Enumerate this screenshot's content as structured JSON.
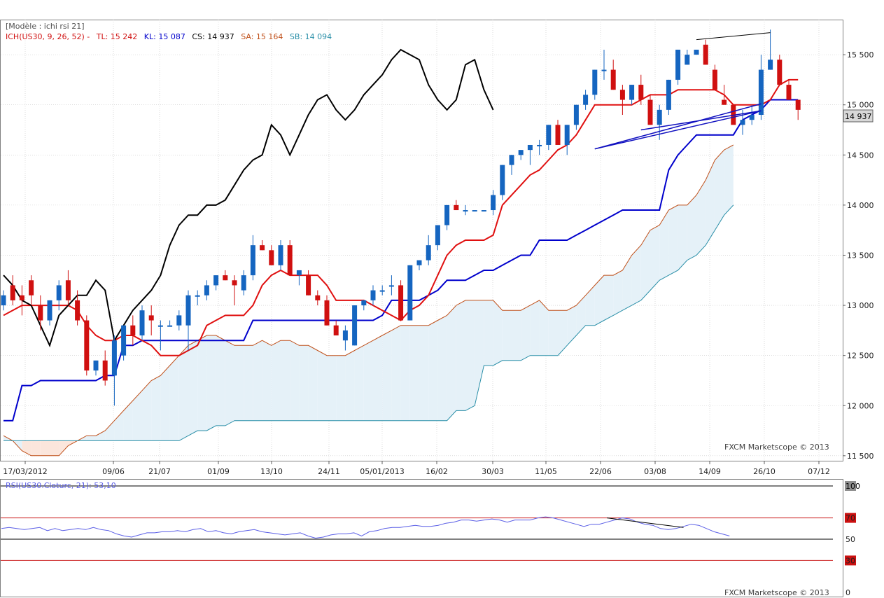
{
  "header": {
    "template_label": "[Modèle : ichi rsi 21]",
    "indicator_prefix": "ICH(US30, 9, 26, 52) -",
    "tl_label": "TL: 15 242",
    "kl_label": "KL: 15 087",
    "cs_label": "CS: 14 937",
    "sa_label": "SA: 15 164",
    "sb_label": "SB: 14 094"
  },
  "price_tag": "14 937",
  "watermark": "FXCM Marketscope © 2013",
  "rsi_label": "RSI(US30.Cloturc, 21): 53,10",
  "colors": {
    "bull": "#1565c0",
    "bear": "#d01010",
    "tenkan": "#e01010",
    "kijun": "#0000cc",
    "chikou": "#000000",
    "span_a": "#c0501a",
    "span_b": "#2a8fa8",
    "cloud_bull": "#e5f1f8",
    "cloud_bear": "#fbe6dc",
    "rsi_line": "#5a5ee6",
    "grid": "#c8c8c8",
    "level_red": "#cc2020"
  },
  "chart_data": [
    {
      "type": "candlestick",
      "title": "US30",
      "instrument": "US30",
      "ylim": [
        11450,
        15850
      ],
      "y_ticks": [
        11500,
        12000,
        12500,
        13000,
        13500,
        14000,
        14500,
        15000,
        15500
      ],
      "y_tick_labels": [
        "11 500",
        "12 000",
        "12 500",
        "13 000",
        "13 500",
        "14 000",
        "14 500",
        "15 000",
        "15 500"
      ],
      "x_tick_labels": [
        "17/03/2012",
        "09/06",
        "21/07",
        "01/09",
        "13/10",
        "24/11",
        "05/01/2013",
        "16/02",
        "30/03",
        "11/05",
        "22/06",
        "03/08",
        "14/09",
        "26/10",
        "07/12"
      ],
      "candles_ohlc": [
        [
          13000,
          13150,
          12950,
          13100
        ],
        [
          13200,
          13300,
          13000,
          13050
        ],
        [
          13100,
          13200,
          12900,
          13050
        ],
        [
          13250,
          13300,
          13000,
          13100
        ],
        [
          13000,
          13100,
          12750,
          12850
        ],
        [
          12850,
          13050,
          12800,
          13050
        ],
        [
          13050,
          13250,
          12950,
          13200
        ],
        [
          13250,
          13350,
          13000,
          13050
        ],
        [
          13050,
          13150,
          12800,
          12850
        ],
        [
          12850,
          12900,
          12300,
          12350
        ],
        [
          12350,
          12450,
          12300,
          12450
        ],
        [
          12450,
          12550,
          12200,
          12250
        ],
        [
          12300,
          12700,
          12000,
          12650
        ],
        [
          12500,
          12800,
          12450,
          12800
        ],
        [
          12800,
          12900,
          12600,
          12700
        ],
        [
          12700,
          13000,
          12650,
          12950
        ],
        [
          12900,
          13000,
          12700,
          12850
        ],
        [
          12800,
          12850,
          12550,
          12800
        ],
        [
          12800,
          12850,
          12800,
          12800
        ],
        [
          12800,
          12950,
          12750,
          12900
        ],
        [
          12800,
          13150,
          12550,
          13100
        ],
        [
          13100,
          13150,
          13000,
          13100
        ],
        [
          13100,
          13250,
          13050,
          13200
        ],
        [
          13200,
          13300,
          13150,
          13300
        ],
        [
          13300,
          13350,
          13250,
          13250
        ],
        [
          13250,
          13300,
          13000,
          13200
        ],
        [
          13150,
          13350,
          13100,
          13300
        ],
        [
          13300,
          13700,
          13250,
          13600
        ],
        [
          13600,
          13650,
          13550,
          13550
        ],
        [
          13550,
          13600,
          13450,
          13400
        ],
        [
          13400,
          13650,
          13350,
          13600
        ],
        [
          13600,
          13650,
          13300,
          13300
        ],
        [
          13300,
          13350,
          13200,
          13350
        ],
        [
          13300,
          13350,
          13100,
          13100
        ],
        [
          13100,
          13150,
          13000,
          13050
        ],
        [
          13050,
          13100,
          12800,
          12800
        ],
        [
          12800,
          12850,
          12700,
          12700
        ],
        [
          12650,
          12800,
          12550,
          12750
        ],
        [
          12600,
          13000,
          12600,
          13000
        ],
        [
          13000,
          13050,
          12950,
          13050
        ],
        [
          13050,
          13200,
          13000,
          13150
        ],
        [
          13150,
          13200,
          13100,
          13150
        ],
        [
          13200,
          13300,
          13100,
          13200
        ],
        [
          13200,
          13250,
          12850,
          12850
        ],
        [
          12850,
          13400,
          12850,
          13400
        ],
        [
          13400,
          13450,
          13350,
          13450
        ],
        [
          13450,
          13700,
          13400,
          13600
        ],
        [
          13600,
          13800,
          13550,
          13800
        ],
        [
          13800,
          14000,
          13750,
          14000
        ],
        [
          14000,
          14050,
          13950,
          13950
        ],
        [
          13950,
          14000,
          13900,
          13950
        ],
        [
          13950,
          13950,
          13950,
          13950
        ],
        [
          13950,
          13950,
          13950,
          13950
        ],
        [
          13950,
          14150,
          13900,
          14100
        ],
        [
          14100,
          14400,
          14050,
          14400
        ],
        [
          14400,
          14500,
          14300,
          14500
        ],
        [
          14500,
          14550,
          14450,
          14550
        ],
        [
          14550,
          14600,
          14400,
          14600
        ],
        [
          14600,
          14650,
          14500,
          14600
        ],
        [
          14600,
          14800,
          14550,
          14800
        ],
        [
          14800,
          14850,
          14600,
          14600
        ],
        [
          14600,
          14800,
          14500,
          14800
        ],
        [
          14800,
          15000,
          14750,
          15000
        ],
        [
          15000,
          15150,
          14950,
          15100
        ],
        [
          15100,
          15350,
          15050,
          15350
        ],
        [
          15350,
          15550,
          15250,
          15350
        ],
        [
          15350,
          15450,
          15150,
          15150
        ],
        [
          15150,
          15200,
          14900,
          15050
        ],
        [
          15050,
          15200,
          15000,
          15200
        ],
        [
          15200,
          15300,
          15000,
          15050
        ],
        [
          15050,
          15100,
          14800,
          14800
        ],
        [
          14800,
          15000,
          14650,
          14950
        ],
        [
          14950,
          15250,
          14900,
          15250
        ],
        [
          15250,
          15550,
          15200,
          15550
        ],
        [
          15400,
          15550,
          15400,
          15500
        ],
        [
          15500,
          15550,
          15500,
          15550
        ],
        [
          15600,
          15650,
          15400,
          15400
        ],
        [
          15350,
          15400,
          15150,
          15150
        ],
        [
          15050,
          15200,
          15000,
          15000
        ],
        [
          15000,
          15000,
          14850,
          14800
        ],
        [
          14800,
          14950,
          14700,
          14850
        ],
        [
          14850,
          15000,
          14800,
          14900
        ],
        [
          14900,
          15500,
          14850,
          15350
        ],
        [
          15350,
          15750,
          15350,
          15450
        ],
        [
          15450,
          15500,
          15200,
          15200
        ],
        [
          15200,
          15250,
          15050,
          15050
        ],
        [
          15050,
          15050,
          14850,
          14950
        ]
      ],
      "tenkan": [
        12900,
        12950,
        13000,
        13000,
        13000,
        13000,
        13000,
        13000,
        12950,
        12800,
        12700,
        12650,
        12650,
        12700,
        12700,
        12650,
        12600,
        12500,
        12500,
        12500,
        12550,
        12600,
        12800,
        12850,
        12900,
        12900,
        12900,
        13000,
        13200,
        13300,
        13350,
        13300,
        13300,
        13300,
        13300,
        13200,
        13050,
        13050,
        13050,
        13050,
        13000,
        12950,
        12900,
        12850,
        12950,
        13000,
        13100,
        13300,
        13500,
        13600,
        13650,
        13650,
        13650,
        13700,
        14000,
        14100,
        14200,
        14300,
        14350,
        14450,
        14550,
        14600,
        14700,
        14850,
        15000,
        15000,
        15000,
        15000,
        15000,
        15050,
        15100,
        15100,
        15100,
        15150,
        15150,
        15150,
        15150,
        15150,
        15100,
        15000,
        15000,
        15000,
        15000,
        15050,
        15200,
        15250,
        15250
      ],
      "kijun": [
        11850,
        11850,
        12200,
        12200,
        12250,
        12250,
        12250,
        12250,
        12250,
        12250,
        12250,
        12300,
        12300,
        12600,
        12600,
        12650,
        12650,
        12650,
        12650,
        12650,
        12650,
        12650,
        12650,
        12650,
        12650,
        12650,
        12650,
        12850,
        12850,
        12850,
        12850,
        12850,
        12850,
        12850,
        12850,
        12850,
        12850,
        12850,
        12850,
        12850,
        12850,
        12900,
        13050,
        13050,
        13050,
        13050,
        13100,
        13150,
        13250,
        13250,
        13250,
        13300,
        13350,
        13350,
        13400,
        13450,
        13500,
        13500,
        13650,
        13650,
        13650,
        13650,
        13700,
        13750,
        13800,
        13850,
        13900,
        13950,
        13950,
        13950,
        13950,
        13950,
        14350,
        14500,
        14600,
        14700,
        14700,
        14700,
        14700,
        14700,
        14850,
        14900,
        14950,
        15050,
        15050,
        15050,
        15050
      ],
      "chikou": [
        13300,
        13200,
        13050,
        13000,
        12800,
        12600,
        12900,
        13000,
        13100,
        13100,
        13250,
        13150,
        12650,
        12800,
        12950,
        13050,
        13150,
        13300,
        13600,
        13800,
        13900,
        13900,
        14000,
        14000,
        14050,
        14200,
        14350,
        14450,
        14500,
        14800,
        14700,
        14500,
        14700,
        14900,
        15050,
        15100,
        14950,
        14850,
        14950,
        15100,
        15200,
        15300,
        15450,
        15550,
        15500,
        15450,
        15200,
        15050,
        14950,
        15050,
        15400,
        15450,
        15150,
        14950
      ],
      "span_a": [
        11700,
        11650,
        11550,
        11500,
        11500,
        11500,
        11500,
        11600,
        11650,
        11700,
        11700,
        11750,
        11850,
        11950,
        12050,
        12150,
        12250,
        12300,
        12400,
        12500,
        12600,
        12650,
        12700,
        12700,
        12650,
        12600,
        12600,
        12600,
        12650,
        12600,
        12650,
        12650,
        12600,
        12600,
        12550,
        12500,
        12500,
        12500,
        12550,
        12600,
        12650,
        12700,
        12750,
        12800,
        12800,
        12800,
        12800,
        12850,
        12900,
        13000,
        13050,
        13050,
        13050,
        13050,
        12950,
        12950,
        12950,
        13000,
        13050,
        12950,
        12950,
        12950,
        13000,
        13100,
        13200,
        13300,
        13300,
        13350,
        13500,
        13600,
        13750,
        13800,
        13950,
        14000,
        14000,
        14100,
        14250,
        14450,
        14550,
        14600
      ],
      "span_b": [
        11650,
        11650,
        11650,
        11650,
        11650,
        11650,
        11650,
        11650,
        11650,
        11650,
        11650,
        11650,
        11650,
        11650,
        11650,
        11650,
        11650,
        11650,
        11650,
        11650,
        11700,
        11750,
        11750,
        11800,
        11800,
        11850,
        11850,
        11850,
        11850,
        11850,
        11850,
        11850,
        11850,
        11850,
        11850,
        11850,
        11850,
        11850,
        11850,
        11850,
        11850,
        11850,
        11850,
        11850,
        11850,
        11850,
        11850,
        11850,
        11850,
        11950,
        11950,
        12000,
        12400,
        12400,
        12450,
        12450,
        12450,
        12500,
        12500,
        12500,
        12500,
        12600,
        12700,
        12800,
        12800,
        12850,
        12900,
        12950,
        13000,
        13050,
        13150,
        13250,
        13300,
        13350,
        13450,
        13500,
        13600,
        13750,
        13900,
        14000
      ],
      "trendlines": [
        {
          "x": [
            64,
            82
          ],
          "y": [
            14560,
            14940
          ]
        },
        {
          "x": [
            69,
            82
          ],
          "y": [
            14750,
            14940
          ]
        },
        {
          "x": [
            64,
            82
          ],
          "y": [
            14560,
            15010
          ]
        }
      ]
    },
    {
      "type": "line",
      "title": "RSI(US30.Cloturc, 21): 53,10",
      "ylim": [
        0,
        100
      ],
      "y_ticks": [
        100,
        70,
        50,
        30,
        0
      ],
      "y_tick_labels": [
        "100",
        "70",
        "50",
        "30",
        "0"
      ],
      "levels": [
        70,
        50,
        30
      ],
      "values": [
        60,
        61,
        60,
        59,
        60,
        61,
        58,
        60,
        58,
        59,
        60,
        59,
        61,
        59,
        58,
        55,
        53,
        52,
        54,
        56,
        56,
        57,
        57,
        58,
        57,
        59,
        60,
        57,
        58,
        56,
        55,
        57,
        58,
        59,
        57,
        56,
        55,
        54,
        55,
        56,
        53,
        51,
        52,
        54,
        55,
        55,
        56,
        53,
        57,
        58,
        60,
        61,
        61,
        62,
        63,
        62,
        62,
        63,
        65,
        66,
        68,
        68,
        67,
        68,
        69,
        68,
        66,
        68,
        68,
        68,
        70,
        71,
        70,
        68,
        66,
        64,
        62,
        64,
        64,
        66,
        68,
        70,
        69,
        66,
        64,
        63,
        60,
        59,
        60,
        62,
        64,
        63,
        60,
        57,
        55,
        53
      ],
      "trendline": {
        "x": [
          79,
          89
        ],
        "y": [
          70,
          61
        ]
      }
    }
  ]
}
